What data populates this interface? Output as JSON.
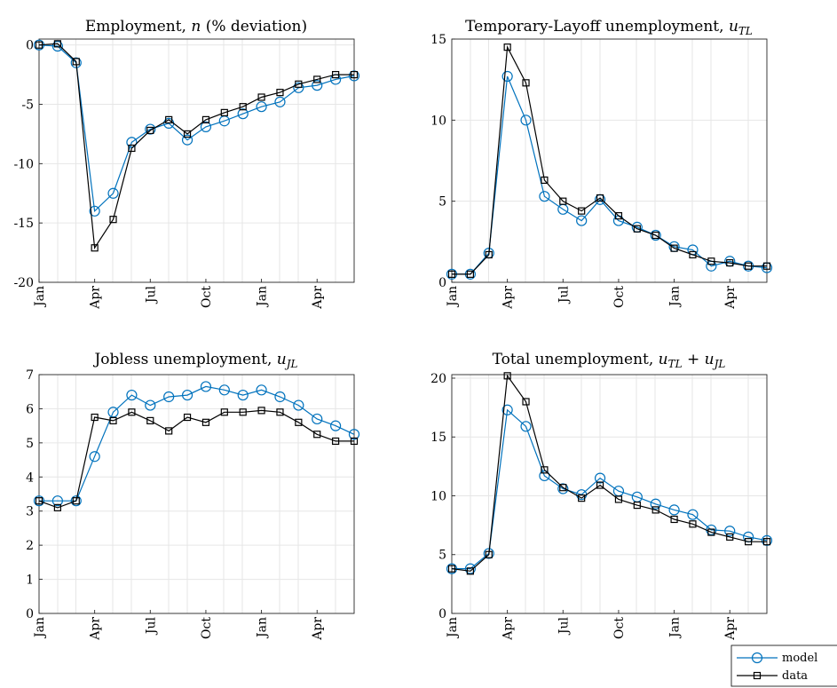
{
  "legend": {
    "model_label": "model",
    "data_label": "data"
  },
  "colors": {
    "model": "#0072BD",
    "data": "#000000"
  },
  "chart_data": [
    {
      "type": "line",
      "title": {
        "prefix": "Employment, ",
        "var": "n",
        "suffix": " (% deviation)"
      },
      "x_ticks": [
        "Jan",
        "Apr",
        "Jul",
        "Oct",
        "Jan",
        "Apr"
      ],
      "ylim": [
        -20,
        0.5
      ],
      "yticks": [
        0,
        -5,
        -10,
        -15,
        -20
      ],
      "grid": true,
      "series": [
        {
          "name": "model",
          "values": [
            0,
            -0.1,
            -1.5,
            -14,
            -12.5,
            -8.2,
            -7.1,
            -6.6,
            -8.0,
            -6.9,
            -6.4,
            -5.8,
            -5.2,
            -4.8,
            -3.6,
            -3.4,
            -2.9,
            -2.6
          ]
        },
        {
          "name": "data",
          "values": [
            0,
            0.1,
            -1.4,
            -17.1,
            -14.7,
            -8.7,
            -7.2,
            -6.3,
            -7.5,
            -6.3,
            -5.7,
            -5.2,
            -4.4,
            -4.0,
            -3.3,
            -2.9,
            -2.5,
            -2.5
          ]
        }
      ]
    },
    {
      "type": "line",
      "title": {
        "prefix": "Temporary-Layoff unemployment, ",
        "var": "u",
        "sub": "TL",
        "suffix": ""
      },
      "x_ticks": [
        "Jan",
        "Apr",
        "Jul",
        "Oct",
        "Jan",
        "Apr"
      ],
      "ylim": [
        0,
        15
      ],
      "yticks": [
        15,
        10,
        5,
        0
      ],
      "grid": true,
      "series": [
        {
          "name": "model",
          "values": [
            0.5,
            0.5,
            1.8,
            12.7,
            10.0,
            5.3,
            4.5,
            3.8,
            5.1,
            3.8,
            3.4,
            2.9,
            2.2,
            2.0,
            1.0,
            1.3,
            1.0,
            0.9
          ]
        },
        {
          "name": "data",
          "values": [
            0.5,
            0.5,
            1.7,
            14.5,
            12.3,
            6.3,
            5.0,
            4.4,
            5.2,
            4.1,
            3.3,
            2.9,
            2.1,
            1.7,
            1.3,
            1.2,
            1.0,
            1.0
          ]
        }
      ]
    },
    {
      "type": "line",
      "title": {
        "prefix": "Jobless unemployment, ",
        "var": "u",
        "sub": "JL",
        "suffix": ""
      },
      "x_ticks": [
        "Jan",
        "Apr",
        "Jul",
        "Oct",
        "Jan",
        "Apr"
      ],
      "ylim": [
        0,
        7
      ],
      "yticks": [
        7,
        6,
        5,
        4,
        3,
        2,
        1,
        0
      ],
      "grid": true,
      "series": [
        {
          "name": "model",
          "values": [
            3.3,
            3.3,
            3.3,
            4.6,
            5.9,
            6.4,
            6.1,
            6.35,
            6.4,
            6.65,
            6.55,
            6.4,
            6.55,
            6.35,
            6.1,
            5.7,
            5.5,
            5.25
          ]
        },
        {
          "name": "data",
          "values": [
            3.3,
            3.1,
            3.3,
            5.75,
            5.65,
            5.9,
            5.65,
            5.35,
            5.75,
            5.6,
            5.9,
            5.9,
            5.95,
            5.9,
            5.6,
            5.25,
            5.05,
            5.05
          ]
        }
      ]
    },
    {
      "type": "line",
      "title": {
        "prefix": "Total unemployment, ",
        "var": "u",
        "sub": "TL",
        "mid": " + ",
        "var2": "u",
        "sub2": "JL",
        "suffix": ""
      },
      "x_ticks": [
        "Jan",
        "Apr",
        "Jul",
        "Oct",
        "Jan",
        "Apr"
      ],
      "ylim": [
        0,
        20.3
      ],
      "yticks": [
        20,
        15,
        10,
        5,
        0
      ],
      "grid": true,
      "series": [
        {
          "name": "model",
          "values": [
            3.8,
            3.8,
            5.1,
            17.3,
            15.9,
            11.7,
            10.6,
            10.1,
            11.5,
            10.4,
            9.9,
            9.3,
            8.8,
            8.4,
            7.1,
            7.0,
            6.5,
            6.2
          ]
        },
        {
          "name": "data",
          "values": [
            3.8,
            3.6,
            5.0,
            20.2,
            18.0,
            12.2,
            10.7,
            9.8,
            10.9,
            9.7,
            9.2,
            8.8,
            8.0,
            7.6,
            6.9,
            6.5,
            6.1,
            6.1
          ]
        }
      ]
    }
  ]
}
